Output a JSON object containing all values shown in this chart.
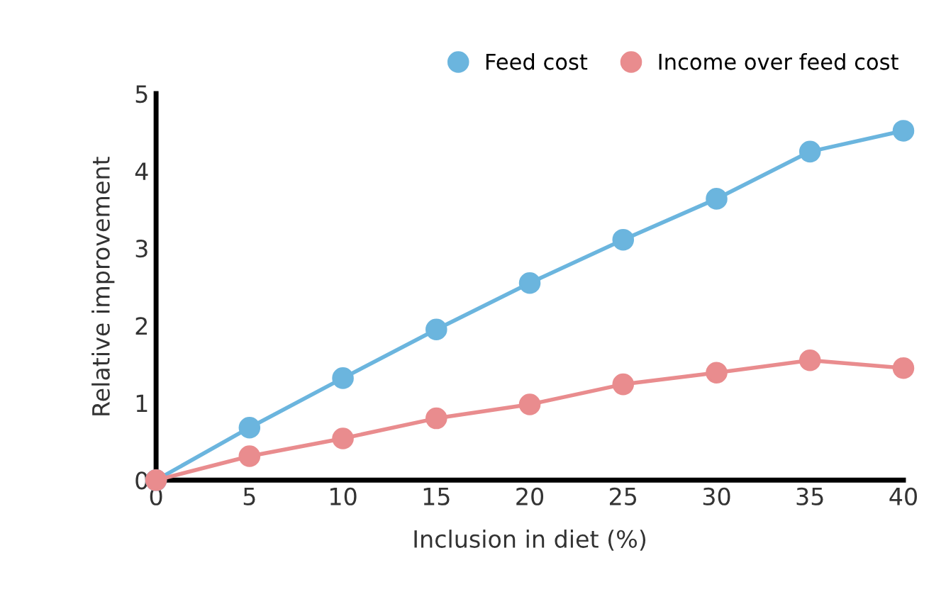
{
  "chart_data": {
    "type": "line",
    "xlabel": "Inclusion in diet (%)",
    "ylabel": "Relative improvement",
    "x": [
      0,
      5,
      10,
      15,
      20,
      25,
      30,
      35,
      40
    ],
    "series": [
      {
        "name": "Feed cost",
        "color": "#6bb5de",
        "values": [
          0,
          0.68,
          1.32,
          1.95,
          2.55,
          3.11,
          3.64,
          4.25,
          4.52
        ]
      },
      {
        "name": "Income over feed cost",
        "color": "#e98c8e",
        "values": [
          0,
          0.31,
          0.54,
          0.8,
          0.98,
          1.24,
          1.39,
          1.55,
          1.45
        ]
      }
    ],
    "xlim": [
      0,
      40
    ],
    "xticks": [
      0,
      5,
      10,
      15,
      20,
      25,
      30,
      35,
      40
    ],
    "ylim": [
      0,
      5
    ],
    "yticks": [
      0,
      1,
      2,
      3,
      4,
      5
    ],
    "marker": "circle",
    "line_style": "solid",
    "grid": false,
    "legend": "top right"
  }
}
